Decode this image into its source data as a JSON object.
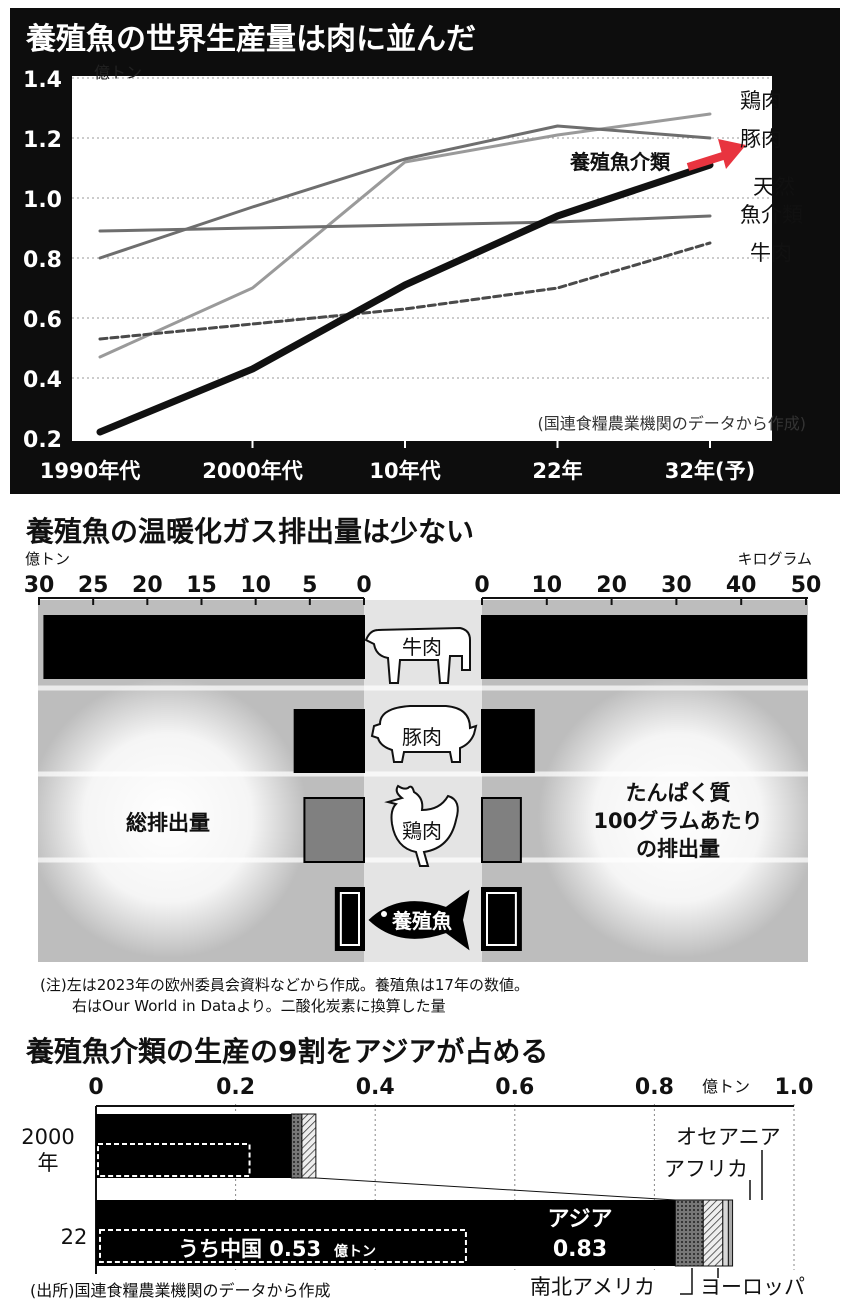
{
  "chart_data": [
    {
      "type": "line",
      "title": "養殖魚の世界生産量は肉に並んだ",
      "unit": "億トン",
      "x": [
        "1990年代",
        "2000年代",
        "10年代",
        "22年",
        "32年(予)"
      ],
      "y_ticks": [
        "1.4",
        "1.2",
        "1.0",
        "0.8",
        "0.6",
        "0.4",
        "0.2"
      ],
      "ylim": [
        0.2,
        1.4
      ],
      "source": "(国連食糧農業機関のデータから作成)",
      "series": [
        {
          "name": "鶏肉",
          "values": [
            0.47,
            0.7,
            1.12,
            1.21,
            1.28
          ],
          "color": "#9a9a9a",
          "width": 3,
          "dash": ""
        },
        {
          "name": "豚肉",
          "values": [
            0.8,
            0.97,
            1.13,
            1.24,
            1.2
          ],
          "color": "#6e6e6e",
          "width": 3,
          "dash": ""
        },
        {
          "name": "天然魚介類",
          "values": [
            0.89,
            0.9,
            0.91,
            0.92,
            0.94
          ],
          "color": "#6e6e6e",
          "width": 3,
          "dash": ""
        },
        {
          "name": "牛肉",
          "values": [
            0.53,
            0.58,
            0.63,
            0.7,
            0.85
          ],
          "color": "#4a4a4a",
          "width": 3,
          "dash": "7 4"
        },
        {
          "name": "養殖魚介類",
          "values": [
            0.22,
            0.43,
            0.71,
            0.94,
            1.11
          ],
          "color": "#111111",
          "width": 7,
          "dash": ""
        }
      ],
      "series_labels": {
        "chicken": "鶏肉",
        "pork": "豚肉",
        "wild_1": "天然",
        "wild_2": "魚介類",
        "beef": "牛肉",
        "aqua": "養殖魚介類"
      },
      "highlight_color": "#e8343f"
    },
    {
      "type": "bar",
      "title": "養殖魚の温暖化ガス排出量は少ない",
      "categories": [
        "牛肉",
        "豚肉",
        "鶏肉",
        "養殖魚"
      ],
      "left": {
        "label": "総排出量",
        "unit": "億トン",
        "ticks": [
          "30",
          "25",
          "20",
          "15",
          "10",
          "5",
          "0"
        ],
        "xlim": [
          0,
          30
        ],
        "values": [
          29.5,
          6.4,
          5.5,
          2.6
        ]
      },
      "right": {
        "label_lines": [
          "たんぱく質",
          "100グラムあたり",
          "の排出量"
        ],
        "unit": "キログラム",
        "ticks": [
          "0",
          "10",
          "20",
          "30",
          "40",
          "50"
        ],
        "xlim": [
          0,
          50
        ],
        "values": [
          50,
          8,
          6,
          6
        ]
      },
      "note_1": "(注)左は2023年の欧州委員会資料などから作成。養殖魚は17年の数値。",
      "note_2": "右はOur World in Dataより。二酸化炭素に換算した量"
    },
    {
      "type": "bar",
      "title": "養殖魚介類の生産の9割をアジアが占める",
      "unit": "億トン",
      "ticks": [
        "0",
        "0.2",
        "0.4",
        "0.6",
        "0.8",
        "1.0"
      ],
      "xlim": [
        0,
        1.0
      ],
      "row_labels": {
        "r2000_a": "2000",
        "r2000_b": "年",
        "r22": "22"
      },
      "rows": [
        {
          "asia": 0.28,
          "china": 0.22,
          "americas": 0.015,
          "europe": 0.02
        },
        {
          "asia": 0.83,
          "china": 0.53,
          "americas": 0.04,
          "europe": 0.028,
          "africa": 0.008,
          "oceania": 0.006
        }
      ],
      "labels": {
        "asia": "アジア",
        "asia_value": "0.83",
        "china": "うち中国 0.53",
        "china_unit": "億トン",
        "oceania": "オセアニア",
        "africa": "アフリカ",
        "americas": "南北アメリカ",
        "europe": "ヨーロッパ"
      },
      "source": "(出所)国連食糧農業機関のデータから作成"
    }
  ]
}
